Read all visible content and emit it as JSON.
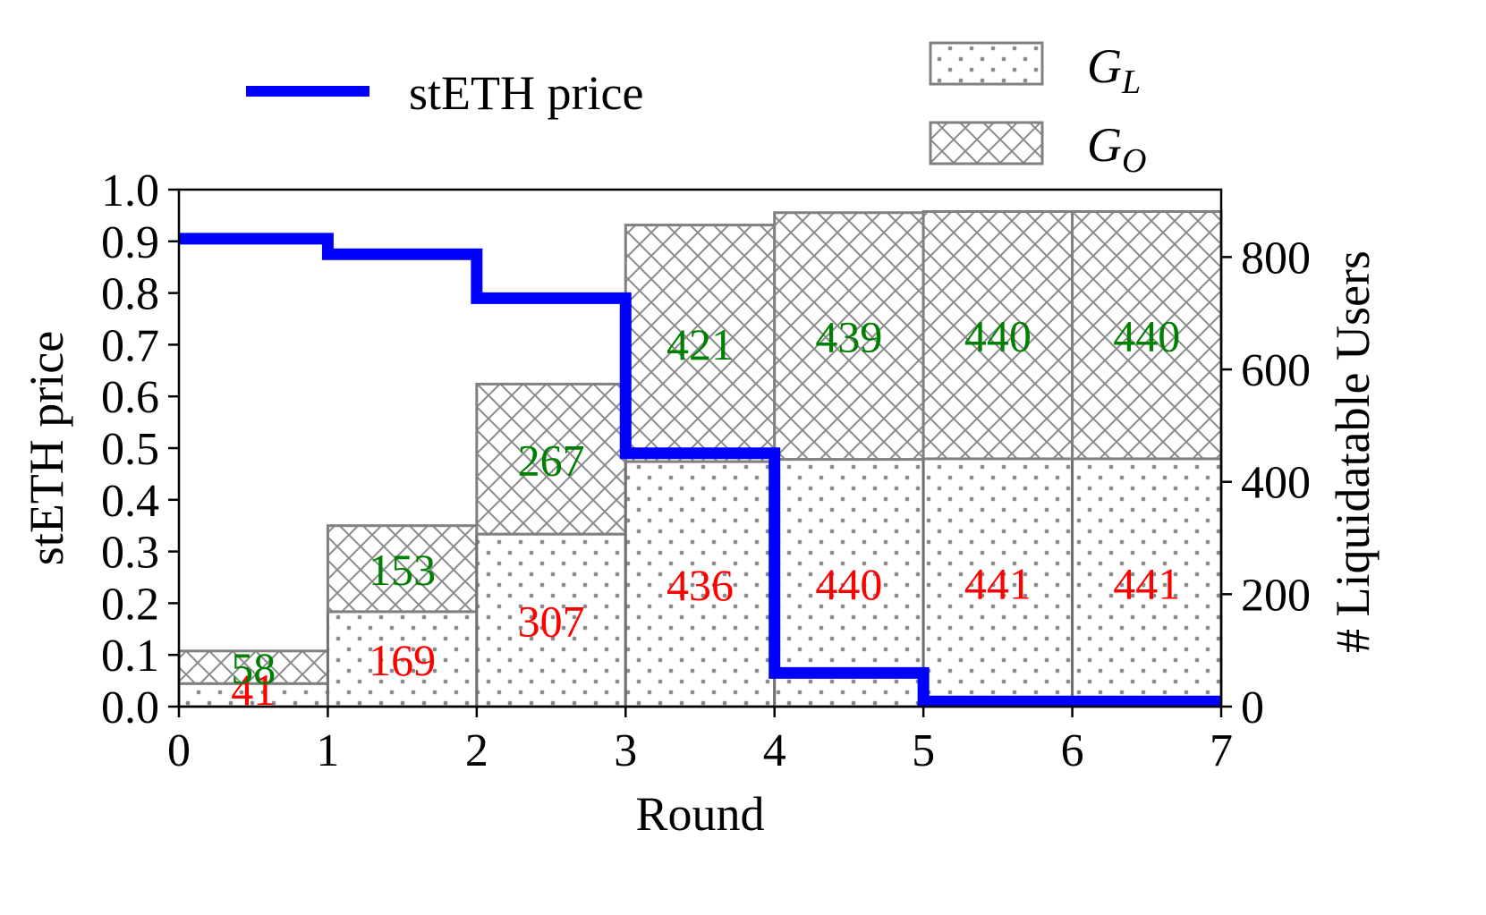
{
  "chart_data": {
    "type": "bar",
    "xlabel": "Round",
    "ylabel": "stETH price",
    "y2label": "# Liquidatable Users",
    "xlim": [
      0,
      7
    ],
    "ylim": [
      0,
      1.0
    ],
    "y2lim": [
      0,
      920
    ],
    "x_ticks": [
      "0",
      "1",
      "2",
      "3",
      "4",
      "5",
      "6",
      "7"
    ],
    "y_ticks": [
      "0.0",
      "0.1",
      "0.2",
      "0.3",
      "0.4",
      "0.5",
      "0.6",
      "0.7",
      "0.8",
      "0.9",
      "1.0"
    ],
    "y2_ticks": [
      "0",
      "200",
      "400",
      "600",
      "800"
    ],
    "categories": [
      0,
      1,
      2,
      3,
      4,
      5,
      6
    ],
    "series": [
      {
        "name": "G_L",
        "kind": "stacked-bar-bottom",
        "pattern": "dots",
        "values": [
          41,
          169,
          307,
          436,
          440,
          441,
          441
        ],
        "label_color": "#ff0000"
      },
      {
        "name": "G_O",
        "kind": "stacked-bar-top",
        "pattern": "crosshatch",
        "values": [
          58,
          153,
          267,
          421,
          439,
          440,
          440
        ],
        "label_color": "#008000"
      },
      {
        "name": "stETH price",
        "kind": "step-line",
        "axis": "left",
        "color": "#0000ff",
        "steps": [
          {
            "x0": 0,
            "x1": 1,
            "y": 0.905
          },
          {
            "x0": 1,
            "x1": 2,
            "y": 0.875
          },
          {
            "x0": 2,
            "x1": 3,
            "y": 0.79
          },
          {
            "x0": 3,
            "x1": 4,
            "y": 0.49
          },
          {
            "x0": 4,
            "x1": 5,
            "y": 0.065
          },
          {
            "x0": 5,
            "x1": 7,
            "y": 0.01
          }
        ]
      }
    ],
    "legend": {
      "line_label": "stETH price",
      "gl_label_main": "G",
      "gl_label_sub": "L",
      "go_label_main": "G",
      "go_label_sub": "O",
      "placement": "top, above plot"
    },
    "grid": false
  }
}
